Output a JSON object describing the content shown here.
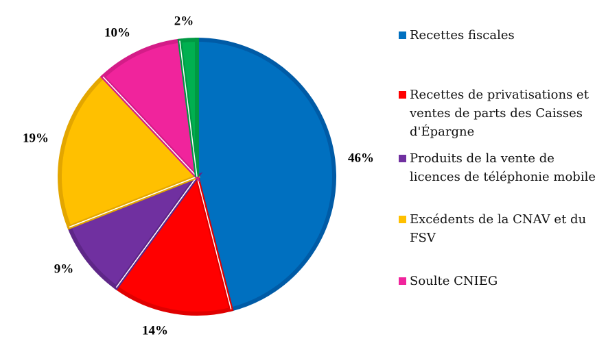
{
  "chart_data": {
    "type": "pie",
    "title": "",
    "start_angle_deg": 0,
    "direction": "clockwise",
    "slices": [
      {
        "label": "Recettes fiscales",
        "value": 46,
        "display": "46%",
        "color": "#0070C0",
        "edge": "#005BA6"
      },
      {
        "label": "Recettes de privatisations et ventes de parts des Caisses d'Épargne",
        "value": 14,
        "display": "14%",
        "color": "#FF0000",
        "edge": "#E00000"
      },
      {
        "label": "Produits de la vente de licences de téléphonie mobile",
        "value": 9,
        "display": "9%",
        "color": "#7030A0",
        "edge": "#5E2688"
      },
      {
        "label": "Excédents de la CNAV et du FSV",
        "value": 19,
        "display": "19%",
        "color": "#FFC000",
        "edge": "#E3A600"
      },
      {
        "label": "Soulte CNIEG",
        "value": 10,
        "display": "10%",
        "color": "#F0249C",
        "edge": "#D41C88"
      },
      {
        "label": "",
        "value": 2,
        "display": "2%",
        "color": "#00B050",
        "edge": "#009943"
      }
    ],
    "legend": {
      "position": "right",
      "entries": [
        {
          "label": "Recettes fiscales",
          "color": "#0070C0"
        },
        {
          "label": "Recettes de privatisations et ventes de parts des Caisses d'Épargne",
          "color": "#FF0000"
        },
        {
          "label": "Produits de la vente de licences de téléphonie mobile",
          "color": "#7030A0"
        },
        {
          "label": "Excédents de la CNAV et du FSV",
          "color": "#FFC000"
        },
        {
          "label": "Soulte CNIEG",
          "color": "#F0249C"
        }
      ]
    }
  }
}
